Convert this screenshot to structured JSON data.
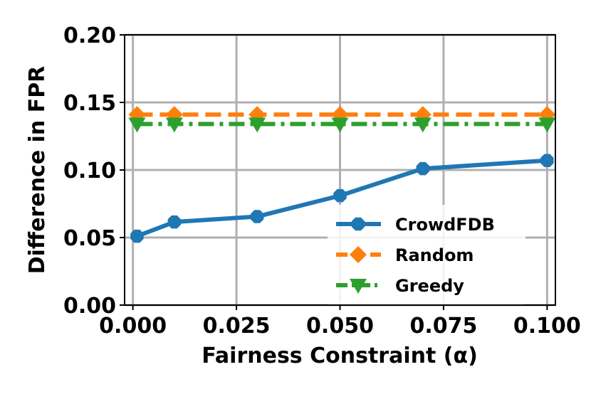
{
  "chart_data": {
    "type": "line",
    "xlabel": "Fairness Constraint (α)",
    "ylabel": "Difference in FPR",
    "xlim": [
      -0.002,
      0.102
    ],
    "ylim": [
      0.0,
      0.2
    ],
    "x_ticks": [
      0.0,
      0.025,
      0.05,
      0.075,
      0.1
    ],
    "x_tick_labels": [
      "0.000",
      "0.025",
      "0.050",
      "0.075",
      "0.100"
    ],
    "y_ticks": [
      0.0,
      0.05,
      0.1,
      0.15,
      0.2
    ],
    "y_tick_labels": [
      "0.00",
      "0.05",
      "0.10",
      "0.15",
      "0.20"
    ],
    "grid": true,
    "legend_position": "lower-right",
    "x": [
      0.001,
      0.01,
      0.03,
      0.05,
      0.07,
      0.1
    ],
    "series": [
      {
        "name": "CrowdFDB",
        "color": "#1f77b4",
        "linestyle": "solid",
        "marker": "octagon",
        "values": [
          0.051,
          0.0615,
          0.0655,
          0.081,
          0.101,
          0.107
        ]
      },
      {
        "name": "Random",
        "color": "#ff7f0e",
        "linestyle": "dashed",
        "marker": "diamond",
        "values": [
          0.141,
          0.141,
          0.141,
          0.141,
          0.141,
          0.141
        ]
      },
      {
        "name": "Greedy",
        "color": "#2ca02c",
        "linestyle": "dashdot",
        "marker": "triangle-down",
        "values": [
          0.134,
          0.134,
          0.134,
          0.134,
          0.134,
          0.134
        ]
      }
    ]
  }
}
